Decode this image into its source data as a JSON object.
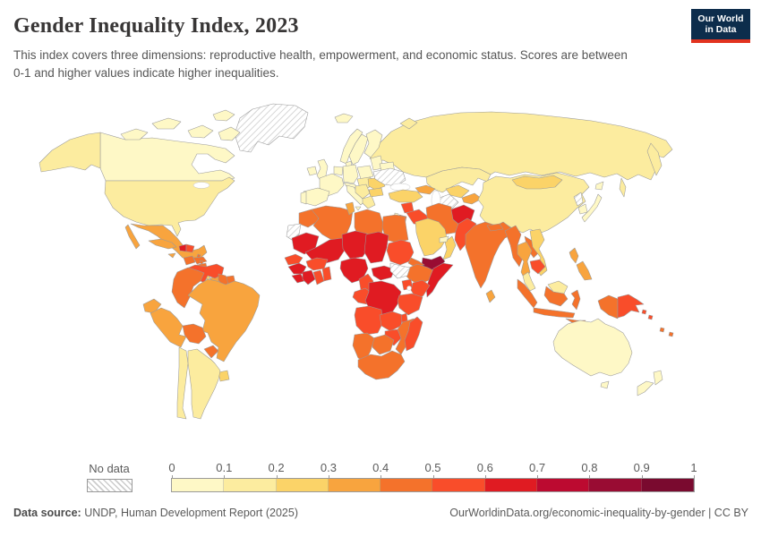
{
  "header": {
    "title": "Gender Inequality Index, 2023",
    "subtitle": "This index covers three dimensions: reproductive health, empowerment, and economic status. Scores are between 0-1 and higher values indicate higher inequalities.",
    "logo": {
      "line1": "Our World",
      "line2": "in Data",
      "bg_color": "#0d2d4c",
      "accent_color": "#e2331f"
    }
  },
  "legend": {
    "no_data_label": "No data",
    "tick_labels": [
      "0",
      "0.1",
      "0.2",
      "0.3",
      "0.4",
      "0.5",
      "0.6",
      "0.7",
      "0.8",
      "0.9",
      "1"
    ],
    "bin_colors": [
      "#fef8c6",
      "#fcec9f",
      "#fbd368",
      "#f8a43e",
      "#f4722b",
      "#f94d2a",
      "#e01b22",
      "#bc0a30",
      "#990c33",
      "#7a0a2f"
    ],
    "nodata_pattern": "diagonal-hatch"
  },
  "footer": {
    "source_label": "Data source:",
    "source_text": " UNDP, Human Development Report (2025)",
    "link_text": "OurWorldinData.org/economic-inequality-by-gender | CC BY"
  },
  "map": {
    "border_color": "#9a9a9a",
    "ocean_color": "#ffffff",
    "regions": {
      "greenland": "nodata",
      "canada": 0,
      "alaska": 1,
      "united-states": 1,
      "mexico": 3,
      "guatemala": 4,
      "honduras": 4,
      "nicaragua": 4,
      "costa-rica": 2,
      "panama": 3,
      "cuba": 3,
      "jamaica": 3,
      "haiti": 6,
      "dominican-republic": 5,
      "lesser-antilles": 4,
      "venezuela": 5,
      "colombia": 4,
      "guyana": 4,
      "suriname": 4,
      "ecuador": 3,
      "peru": 3,
      "brazil": 3,
      "bolivia": 4,
      "paraguay": 4,
      "uruguay": 2,
      "argentina": 1,
      "chile": 1,
      "iceland": 0,
      "ireland": 0,
      "uk": 0,
      "norway": 0,
      "sweden": 0,
      "finland": 0,
      "denmark": 0,
      "baltic-states": 0,
      "belarus": 0,
      "poland": 0,
      "germany": 0,
      "benelux": 0,
      "france": 0,
      "spain": 0,
      "portugal": 0,
      "italy": 0,
      "switzerland-austria": 0,
      "czech-slovakia-hungary": 1,
      "balkans": 1,
      "romania": 2,
      "bulgaria": 2,
      "greece": 1,
      "ukraine": "nodata",
      "russia": 1,
      "kazakhstan": 1,
      "turkmenistan": "nodata",
      "uzbekistan": 2,
      "kyrgyzstan-tajikistan": 3,
      "caucasus": 3,
      "turkey": 2,
      "syria": 5,
      "iraq": 5,
      "jordan": 4,
      "israel": 0,
      "saudi-arabia": 2,
      "yemen": 8,
      "oman": 2,
      "uae": 0,
      "iran": 4,
      "afghanistan": 6,
      "pakistan": 5,
      "india": 4,
      "nepal": 4,
      "bangladesh": 5,
      "sri-lanka": 3,
      "china": 1,
      "mongolia": 2,
      "north-korea": "nodata",
      "south-korea": 0,
      "japan": 0,
      "myanmar": 4,
      "thailand": 3,
      "laos": 4,
      "vietnam": 2,
      "cambodia": 5,
      "malaysia": 1,
      "indonesia": 4,
      "philippines": 3,
      "papua-new-guinea": 5,
      "solomon-islands": 5,
      "vanuatu-fiji": 4,
      "australia": 0,
      "new-zealand": 0,
      "morocco": 4,
      "algeria": 4,
      "tunisia": 3,
      "libya": 4,
      "egypt": 4,
      "western-sahara": "nodata",
      "mauritania": 6,
      "mali": 6,
      "niger": 6,
      "chad": 6,
      "sudan": 5,
      "eritrea": 4,
      "ethiopia": 4,
      "somalia": 6,
      "senegal": 5,
      "guinea": 6,
      "sierra-leone-liberia": 6,
      "ivory-coast": 6,
      "ghana": 5,
      "togo-benin": 5,
      "burkina-faso": 5,
      "nigeria": 6,
      "cameroon": 5,
      "central-african-republic": 6,
      "south-sudan": "nodata",
      "uganda": 5,
      "kenya": 5,
      "congo": 5,
      "dr-congo": 6,
      "tanzania": 5,
      "angola": 5,
      "zambia": 5,
      "malawi": 5,
      "mozambique": 4,
      "zimbabwe": 5,
      "botswana": 4,
      "namibia": 4,
      "south-africa": 4,
      "madagascar": 5
    }
  }
}
